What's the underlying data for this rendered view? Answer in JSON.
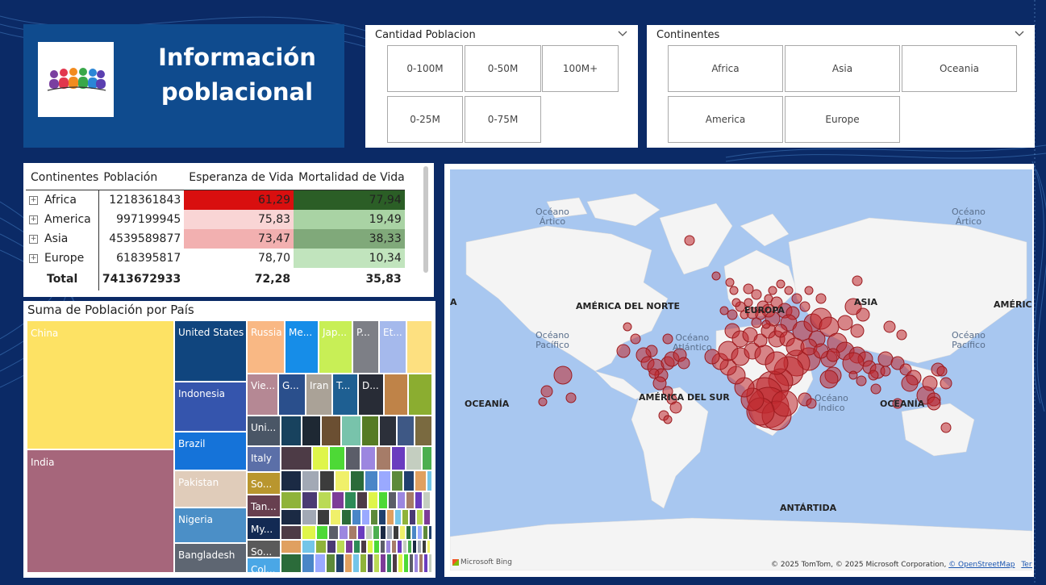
{
  "header": {
    "title_line1": "Información",
    "title_line2": "poblacional"
  },
  "slicer_population": {
    "title": "Cantidad Poblacion",
    "options": [
      "0-100M",
      "0-50M",
      "100M+",
      "0-25M",
      "0-75M"
    ]
  },
  "slicer_continents": {
    "title": "Continentes",
    "options": [
      "Africa",
      "Asia",
      "Oceania",
      "America",
      "Europe"
    ]
  },
  "matrix": {
    "headers": [
      "Continentes",
      "Población",
      "Esperanza de Vida",
      "Mortalidad de Vida"
    ],
    "rows": [
      {
        "continent": "Africa",
        "population": "1218361843",
        "life": "61,29",
        "mortality": "77,94",
        "life_color": "#d90f0f",
        "mortality_color": "#2b5e26"
      },
      {
        "continent": "America",
        "population": "997199945",
        "life": "75,83",
        "mortality": "19,49",
        "life_color": "#f9d5d5",
        "mortality_color": "#a9d3a4"
      },
      {
        "continent": "Asia",
        "population": "4539589877",
        "life": "73,47",
        "mortality": "38,33",
        "life_color": "#f2b0b0",
        "mortality_color": "#80a97a"
      },
      {
        "continent": "Europe",
        "population": "618395817",
        "life": "78,70",
        "mortality": "10,34",
        "life_color": "#ffffff",
        "mortality_color": "#c1e4bd"
      }
    ],
    "total": {
      "label": "Total",
      "population": "7413672933",
      "life": "72,28",
      "mortality": "35,83"
    }
  },
  "treemap": {
    "title": "Suma de Población por País",
    "labels": {
      "china": "China",
      "india": "India",
      "united_states": "United States",
      "indonesia": "Indonesia",
      "brazil": "Brazil",
      "pakistan": "Pakistan",
      "nigeria": "Nigeria",
      "bangladesh": "Bangladesh",
      "russia": "Russia",
      "mexico": "Me...",
      "japan": "Jap...",
      "philippines": "P...",
      "ethiopia": "Et...",
      "vietnam": "Vie...",
      "germany": "G...",
      "iran": "Iran",
      "turkey": "T...",
      "drc": "D...",
      "united_kingdom": "Uni...",
      "italy": "Italy",
      "south_africa": "So...",
      "tanzania": "Tan...",
      "myanmar": "My...",
      "south_korea": "So...",
      "colombia": "Col..."
    }
  },
  "map": {
    "labels": {
      "oceano_artico_1": "Océano\nÁrtico",
      "oceano_artico_2": "Océano\nÁrtico",
      "america_norte": "AMÉRICA DEL NORTE",
      "america_sur": "AMÉRICA DEL SUR",
      "oceano_pacifico_1": "Océano\nPacífico",
      "oceano_pacifico_2": "Océano\nPacífico",
      "oceano_atlantico": "Océano\nAtlántico",
      "oceano_indico": "Océano\nÍndico",
      "asia": "ASIA",
      "oceania_1": "OCEANÍA",
      "oceania_2": "OCEANÍA",
      "antartida": "ANTÁRTIDA",
      "europa": "EUROPA",
      "africa_left": "A",
      "america_right": "AMÉRICA"
    },
    "bing": "Microsoft Bing",
    "attribution": "© 2025 TomTom, © 2025 Microsoft Corporation,",
    "osm_link": "© OpenStreetMap",
    "terms_link": "Terms",
    "bubble_color": "#c0282d"
  }
}
